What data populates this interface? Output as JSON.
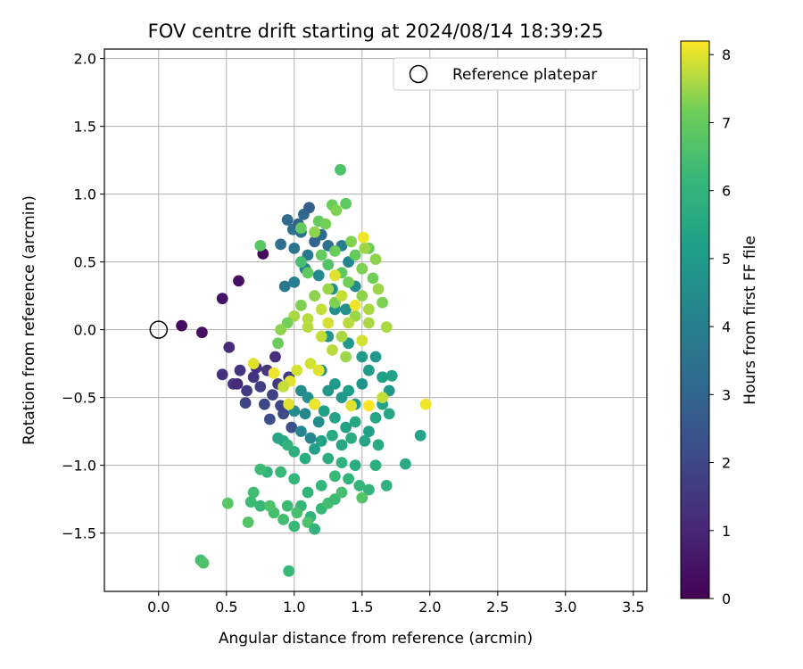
{
  "chart_data": {
    "type": "scatter",
    "title": "FOV centre drift starting at 2024/08/14 18:39:25",
    "xlabel": "Angular distance from reference (arcmin)",
    "ylabel": "Rotation from reference (arcmin)",
    "xlim": [
      -0.4,
      3.6
    ],
    "ylim": [
      -1.93,
      2.07
    ],
    "xticks": [
      "0.0",
      "0.5",
      "1.0",
      "1.5",
      "2.0",
      "2.5",
      "3.0",
      "3.5"
    ],
    "yticks": [
      "−1.5",
      "−1.0",
      "−0.5",
      "0.0",
      "0.5",
      "1.0",
      "1.5",
      "2.0"
    ],
    "grid": true,
    "legend": {
      "position": "top-right",
      "entries": [
        "Reference platepar"
      ]
    },
    "reference_point": {
      "x": 0.0,
      "y": 0.0,
      "marker": "open-circle"
    },
    "colorbar": {
      "label": "Hours from first FF file",
      "range": [
        0,
        8.2
      ],
      "ticks": [
        "0",
        "1",
        "2",
        "3",
        "4",
        "5",
        "6",
        "7",
        "8"
      ],
      "colormap": "viridis"
    },
    "points": [
      [
        0.17,
        0.03,
        0.3
      ],
      [
        0.32,
        -0.02,
        0.4
      ],
      [
        0.47,
        0.23,
        0.5
      ],
      [
        0.59,
        0.36,
        0.4
      ],
      [
        0.77,
        0.56,
        0.2
      ],
      [
        0.52,
        -0.13,
        1.2
      ],
      [
        0.47,
        -0.33,
        1.3
      ],
      [
        0.55,
        -0.4,
        1.5
      ],
      [
        0.6,
        -0.3,
        1.4
      ],
      [
        0.65,
        -0.45,
        1.6
      ],
      [
        0.7,
        -0.35,
        1.4
      ],
      [
        0.75,
        -0.42,
        1.7
      ],
      [
        0.8,
        -0.3,
        1.5
      ],
      [
        0.64,
        -0.54,
        1.9
      ],
      [
        0.72,
        -0.28,
        1.3
      ],
      [
        0.78,
        -0.55,
        2.0
      ],
      [
        0.84,
        -0.48,
        1.8
      ],
      [
        0.88,
        -0.4,
        1.6
      ],
      [
        0.92,
        -0.62,
        2.1
      ],
      [
        0.96,
        -0.35,
        1.7
      ],
      [
        0.82,
        -0.66,
        2.2
      ],
      [
        0.9,
        -0.56,
        1.9
      ],
      [
        0.86,
        -0.2,
        1.2
      ],
      [
        0.58,
        -0.4,
        1.1
      ],
      [
        0.98,
        -0.72,
        2.3
      ],
      [
        0.95,
        0.81,
        3.2
      ],
      [
        0.99,
        0.74,
        3.4
      ],
      [
        1.03,
        0.78,
        2.9
      ],
      [
        1.07,
        0.85,
        3.1
      ],
      [
        1.11,
        0.9,
        2.8
      ],
      [
        1.15,
        0.65,
        3.0
      ],
      [
        0.9,
        0.63,
        3.3
      ],
      [
        1.0,
        0.6,
        3.6
      ],
      [
        1.05,
        0.72,
        3.5
      ],
      [
        1.1,
        0.55,
        3.8
      ],
      [
        1.2,
        0.7,
        3.2
      ],
      [
        1.25,
        0.62,
        3.4
      ],
      [
        0.93,
        0.32,
        3.7
      ],
      [
        1.0,
        0.35,
        3.9
      ],
      [
        1.08,
        0.45,
        4.1
      ],
      [
        1.18,
        0.4,
        4.3
      ],
      [
        1.28,
        0.3,
        4.5
      ],
      [
        1.35,
        0.62,
        3.9
      ],
      [
        1.4,
        0.5,
        4.2
      ],
      [
        1.3,
        0.15,
        4.6
      ],
      [
        1.45,
        0.32,
        4.4
      ],
      [
        1.38,
        0.15,
        4.7
      ],
      [
        1.25,
        -0.05,
        4.8
      ],
      [
        1.4,
        -0.1,
        4.9
      ],
      [
        1.5,
        -0.2,
        5.0
      ],
      [
        1.55,
        -0.3,
        5.1
      ],
      [
        1.6,
        -0.2,
        4.9
      ],
      [
        1.65,
        -0.35,
        5.2
      ],
      [
        1.7,
        -0.45,
        5.0
      ],
      [
        1.72,
        -0.34,
        5.3
      ],
      [
        1.3,
        -0.4,
        5.0
      ],
      [
        1.35,
        -0.5,
        4.9
      ],
      [
        1.4,
        -0.45,
        5.1
      ],
      [
        1.45,
        -0.55,
        5.0
      ],
      [
        1.5,
        -0.4,
        4.8
      ],
      [
        1.2,
        -0.3,
        4.7
      ],
      [
        1.25,
        -0.45,
        4.9
      ],
      [
        1.15,
        -0.55,
        4.8
      ],
      [
        1.1,
        -0.5,
        4.6
      ],
      [
        1.05,
        -0.45,
        4.5
      ],
      [
        1.0,
        -0.6,
        4.4
      ],
      [
        1.08,
        -0.62,
        4.3
      ],
      [
        1.18,
        -0.68,
        4.5
      ],
      [
        1.05,
        -0.75,
        4.2
      ],
      [
        1.12,
        -0.8,
        4.3
      ],
      [
        1.22,
        -0.6,
        5.2
      ],
      [
        1.3,
        -0.65,
        5.4
      ],
      [
        1.38,
        -0.72,
        5.3
      ],
      [
        1.45,
        -0.68,
        5.5
      ],
      [
        1.55,
        -0.75,
        5.2
      ],
      [
        1.6,
        -0.65,
        5.4
      ],
      [
        1.65,
        -0.55,
        5.3
      ],
      [
        1.7,
        -0.62,
        5.5
      ],
      [
        1.62,
        -0.85,
        5.6
      ],
      [
        1.52,
        -0.82,
        5.4
      ],
      [
        1.42,
        -0.8,
        5.7
      ],
      [
        1.35,
        -0.85,
        5.5
      ],
      [
        1.28,
        -0.78,
        5.6
      ],
      [
        1.2,
        -0.82,
        5.3
      ],
      [
        1.15,
        -0.88,
        5.2
      ],
      [
        1.08,
        -0.95,
        5.7
      ],
      [
        1.0,
        -0.9,
        5.8
      ],
      [
        0.92,
        -0.82,
        5.6
      ],
      [
        0.88,
        -0.8,
        5.5
      ],
      [
        0.95,
        -0.85,
        5.9
      ],
      [
        1.25,
        -0.95,
        5.8
      ],
      [
        1.35,
        -0.98,
        5.9
      ],
      [
        1.45,
        -1.0,
        5.7
      ],
      [
        1.6,
        -1.0,
        5.8
      ],
      [
        1.82,
        -0.99,
        5.6
      ],
      [
        1.93,
        -0.78,
        5.4
      ],
      [
        1.68,
        -1.15,
        5.9
      ],
      [
        1.55,
        -1.18,
        6.0
      ],
      [
        1.48,
        -1.15,
        6.1
      ],
      [
        1.4,
        -1.1,
        6.0
      ],
      [
        1.3,
        -1.08,
        6.2
      ],
      [
        1.2,
        -1.15,
        6.1
      ],
      [
        1.1,
        -1.2,
        6.0
      ],
      [
        1.0,
        -1.1,
        6.1
      ],
      [
        0.9,
        -1.05,
        6.2
      ],
      [
        0.8,
        -1.05,
        6.0
      ],
      [
        0.75,
        -1.03,
        6.3
      ],
      [
        0.7,
        -1.2,
        6.4
      ],
      [
        0.75,
        -1.3,
        6.2
      ],
      [
        0.85,
        -1.35,
        6.5
      ],
      [
        0.95,
        -1.3,
        6.3
      ],
      [
        1.05,
        -1.3,
        6.1
      ],
      [
        1.12,
        -1.38,
        6.0
      ],
      [
        1.2,
        -1.32,
        6.2
      ],
      [
        1.25,
        -1.28,
        6.4
      ],
      [
        1.3,
        -1.25,
        6.3
      ],
      [
        1.35,
        -1.2,
        6.5
      ],
      [
        0.92,
        -1.4,
        6.4
      ],
      [
        1.0,
        -1.45,
        6.2
      ],
      [
        1.1,
        -1.42,
        6.6
      ],
      [
        1.15,
        -1.47,
        6.0
      ],
      [
        1.02,
        -1.35,
        6.5
      ],
      [
        0.82,
        -1.3,
        6.6
      ],
      [
        0.68,
        -1.27,
        6.3
      ],
      [
        0.66,
        -1.42,
        6.7
      ],
      [
        0.51,
        -1.28,
        6.8
      ],
      [
        0.31,
        -1.7,
        6.4
      ],
      [
        0.33,
        -1.72,
        6.6
      ],
      [
        0.96,
        -1.78,
        6.2
      ],
      [
        1.5,
        -1.24,
        6.7
      ],
      [
        0.75,
        0.62,
        6.8
      ],
      [
        1.05,
        0.5,
        6.5
      ],
      [
        1.1,
        0.42,
        6.9
      ],
      [
        1.2,
        0.55,
        7.0
      ],
      [
        1.25,
        0.48,
        6.7
      ],
      [
        1.3,
        0.58,
        7.1
      ],
      [
        1.35,
        0.42,
        6.9
      ],
      [
        1.4,
        0.35,
        7.2
      ],
      [
        1.45,
        0.55,
        7.0
      ],
      [
        1.5,
        0.45,
        7.3
      ],
      [
        1.55,
        0.6,
        7.1
      ],
      [
        1.6,
        0.52,
        7.4
      ],
      [
        1.58,
        0.38,
        7.2
      ],
      [
        1.62,
        0.3,
        7.5
      ],
      [
        1.65,
        0.2,
        7.3
      ],
      [
        1.55,
        0.15,
        7.6
      ],
      [
        1.5,
        0.25,
        7.4
      ],
      [
        1.45,
        0.1,
        7.5
      ],
      [
        1.4,
        0.05,
        7.7
      ],
      [
        1.35,
        -0.05,
        7.6
      ],
      [
        1.3,
        0.2,
        7.3
      ],
      [
        1.25,
        0.3,
        7.5
      ],
      [
        1.2,
        0.15,
        7.8
      ],
      [
        1.15,
        0.25,
        7.4
      ],
      [
        1.1,
        0.08,
        7.7
      ],
      [
        1.05,
        0.18,
        7.3
      ],
      [
        1.0,
        0.1,
        7.6
      ],
      [
        0.95,
        0.05,
        7.2
      ],
      [
        0.9,
        0.0,
        7.4
      ],
      [
        0.88,
        -0.1,
        7.1
      ],
      [
        1.18,
        0.8,
        7.0
      ],
      [
        1.23,
        0.78,
        7.2
      ],
      [
        1.28,
        0.92,
        7.1
      ],
      [
        1.31,
        0.88,
        7.3
      ],
      [
        1.38,
        0.93,
        6.9
      ],
      [
        1.34,
        1.18,
        6.6
      ],
      [
        1.15,
        0.72,
        7.4
      ],
      [
        1.05,
        0.75,
        7.0
      ],
      [
        1.42,
        0.65,
        7.3
      ],
      [
        1.52,
        0.6,
        7.5
      ],
      [
        1.68,
        0.02,
        7.6
      ],
      [
        1.02,
        -0.3,
        7.9
      ],
      [
        0.97,
        -0.38,
        8.0
      ],
      [
        0.92,
        -0.42,
        7.8
      ],
      [
        0.85,
        -0.32,
        8.1
      ],
      [
        0.7,
        -0.25,
        8.0
      ],
      [
        1.12,
        -0.25,
        7.9
      ],
      [
        1.18,
        -0.3,
        8.0
      ],
      [
        1.15,
        -0.55,
        8.1
      ],
      [
        1.42,
        -0.56,
        8.0
      ],
      [
        1.55,
        -0.56,
        8.2
      ],
      [
        1.65,
        -0.5,
        7.8
      ],
      [
        1.97,
        -0.55,
        8.1
      ],
      [
        0.96,
        -0.55,
        8.0
      ],
      [
        1.51,
        0.68,
        8.1
      ],
      [
        1.3,
        0.4,
        8.0
      ],
      [
        1.35,
        0.25,
        7.8
      ],
      [
        1.45,
        0.18,
        8.1
      ],
      [
        1.25,
        0.05,
        7.9
      ],
      [
        1.1,
        0.02,
        7.7
      ],
      [
        1.2,
        -0.05,
        7.8
      ],
      [
        1.5,
        -0.08,
        7.9
      ],
      [
        1.55,
        0.05,
        7.6
      ],
      [
        1.28,
        -0.15,
        7.7
      ],
      [
        1.38,
        -0.2,
        7.5
      ]
    ]
  }
}
